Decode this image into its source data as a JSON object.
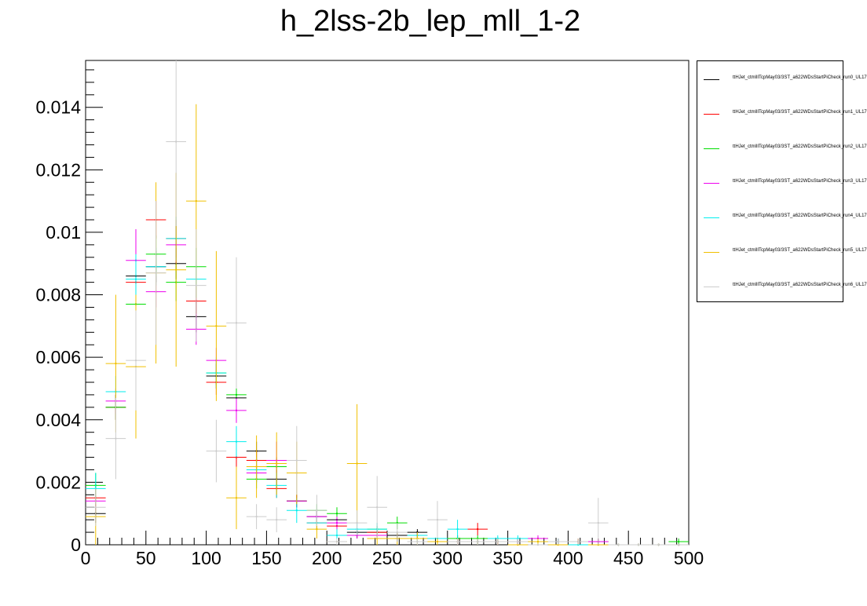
{
  "chart_data": {
    "type": "scatter",
    "title": "h_2lss-2b_lep_mll_1-2",
    "xlabel": "",
    "ylabel": "",
    "xlim": [
      0,
      500
    ],
    "ylim": [
      0,
      0.0155
    ],
    "x_ticks": [
      0,
      50,
      100,
      150,
      200,
      250,
      300,
      350,
      400,
      450,
      500
    ],
    "x_tick_labels": [
      "0",
      "50",
      "100",
      "150",
      "200",
      "250",
      "300",
      "350",
      "400",
      "450",
      "500"
    ],
    "y_ticks": [
      0,
      0.002,
      0.004,
      0.006,
      0.008,
      0.01,
      0.012,
      0.014
    ],
    "y_tick_labels": [
      "0",
      "0.002",
      "0.004",
      "0.006",
      "0.008",
      "0.01",
      "0.012",
      "0.014"
    ],
    "bin_width": 16.6667,
    "x": [
      8.33,
      25,
      41.67,
      58.33,
      75,
      91.67,
      108.33,
      125,
      141.67,
      158.33,
      175,
      191.67,
      208.33,
      225,
      241.67,
      258.33,
      275,
      291.67,
      308.33,
      325,
      341.67,
      358.33,
      375,
      391.67,
      408.33,
      425,
      441.67,
      458.33,
      475,
      491.67
    ],
    "legend_placement": "right",
    "series": [
      {
        "name": "ttHJet_ctmlIlTcpMay03/3ST_a622WDsStartPiCheck_run0_UL17",
        "color": "#000000",
        "values": [
          0.001,
          0.0044,
          0.0086,
          0.0089,
          0.009,
          0.0073,
          0.0054,
          0.0047,
          0.003,
          0.0021,
          0.0014,
          0.0009,
          0.0008,
          0.0004,
          0.0004,
          0.0003,
          0.0004,
          0.0002,
          0.0001,
          0.0001,
          0.0001,
          0.0001,
          0.0001,
          0.0001,
          0.0001,
          0.0001,
          0.0,
          0.0,
          0.0,
          0.0
        ],
        "errors": [
          0.0003,
          0.0004,
          0.0005,
          0.0005,
          0.0005,
          0.0005,
          0.0004,
          0.0004,
          0.0003,
          0.0003,
          0.0002,
          0.0002,
          0.0002,
          0.0001,
          0.0001,
          0.0001,
          0.0001,
          0.0001,
          0.0001,
          0.0001,
          0.0001,
          0.0001,
          0.0001,
          0.0001,
          0.0001,
          0.0001,
          0.0,
          0.0,
          0.0,
          0.0
        ]
      },
      {
        "name": "ttHJet_ctmlIlTcpMay03/3ST_a622WDsStartPiCheck_run1_UL17",
        "color": "#ff0000",
        "values": [
          0.0015,
          0.0044,
          0.0084,
          0.0104,
          0.0098,
          0.0078,
          0.0052,
          0.0028,
          0.0027,
          0.0018,
          0.0014,
          0.0007,
          0.0006,
          0.0003,
          0.0004,
          0.0002,
          0.0003,
          0.0002,
          0.0002,
          0.0005,
          0.0001,
          0.0001,
          0.0002,
          0.0001,
          0.0001,
          0.0001,
          0.0,
          0.0,
          0.0,
          0.0
        ],
        "errors": [
          0.0003,
          0.0004,
          0.0005,
          0.0006,
          0.0006,
          0.0005,
          0.0004,
          0.0003,
          0.0003,
          0.0003,
          0.0002,
          0.0002,
          0.0002,
          0.0001,
          0.0001,
          0.0001,
          0.0001,
          0.0001,
          0.0001,
          0.0002,
          0.0001,
          0.0001,
          0.0001,
          0.0001,
          0.0001,
          0.0001,
          0.0,
          0.0,
          0.0,
          0.0
        ]
      },
      {
        "name": "ttHJet_ctmlIlTcpMay03/3ST_a622WDsStartPiCheck_run2_UL17",
        "color": "#00dd00",
        "values": [
          0.0019,
          0.0044,
          0.0077,
          0.0093,
          0.0084,
          0.0089,
          0.0055,
          0.0048,
          0.0021,
          0.0025,
          0.0014,
          0.0011,
          0.001,
          0.0003,
          0.0005,
          0.0007,
          0.0002,
          0.0002,
          0.0002,
          0.0002,
          0.0001,
          0.0001,
          0.0002,
          0.0001,
          0.0001,
          0.0001,
          0.0,
          0.0,
          0.0,
          0.0001
        ],
        "errors": [
          0.0004,
          0.0004,
          0.0005,
          0.0006,
          0.0006,
          0.0006,
          0.0004,
          0.0004,
          0.0003,
          0.0003,
          0.0002,
          0.0002,
          0.0002,
          0.0001,
          0.0001,
          0.0002,
          0.0001,
          0.0001,
          0.0001,
          0.0001,
          0.0001,
          0.0001,
          0.0001,
          0.0001,
          0.0001,
          0.0001,
          0.0,
          0.0,
          0.0,
          0.0001
        ]
      },
      {
        "name": "ttHJet_ctmlIlTcpMay03/3ST_a622WDsStartPiCheck_run3_UL17",
        "color": "#ee00ee",
        "values": [
          0.0014,
          0.0046,
          0.0091,
          0.0081,
          0.0096,
          0.0069,
          0.0059,
          0.0043,
          0.0023,
          0.0027,
          0.0014,
          0.0009,
          0.0007,
          0.0003,
          0.0003,
          0.0002,
          0.0003,
          0.0001,
          0.0001,
          0.0001,
          0.0001,
          0.0001,
          0.0002,
          0.0001,
          0.0001,
          0.0001,
          0.0,
          0.0,
          0.0,
          0.0
        ],
        "errors": [
          0.0003,
          0.0004,
          0.001,
          0.0005,
          0.0006,
          0.0005,
          0.0004,
          0.0004,
          0.0003,
          0.0006,
          0.0002,
          0.0002,
          0.0002,
          0.0001,
          0.0001,
          0.0001,
          0.0001,
          0.0001,
          0.0001,
          0.0001,
          0.0001,
          0.0001,
          0.0001,
          0.0001,
          0.0001,
          0.0001,
          0.0,
          0.0,
          0.0,
          0.0
        ]
      },
      {
        "name": "ttHJet_ctmlIlTcpMay03/3ST_a622WDsStartPiCheck_run4_UL17",
        "color": "#00eeee",
        "values": [
          0.0018,
          0.0049,
          0.0085,
          0.0089,
          0.0098,
          0.0085,
          0.0055,
          0.0033,
          0.0024,
          0.0019,
          0.0011,
          0.0007,
          0.0003,
          0.0005,
          0.0005,
          0.0002,
          0.0003,
          0.0002,
          0.0005,
          0.0001,
          0.0002,
          0.0002,
          0.0001,
          0.0001,
          0.0,
          0.0,
          0.0,
          0.0,
          0.0,
          0.0
        ],
        "errors": [
          0.0005,
          0.0005,
          0.0008,
          0.0006,
          0.0007,
          0.0006,
          0.0005,
          0.0005,
          0.0004,
          0.0004,
          0.0004,
          0.0002,
          0.0002,
          0.0002,
          0.0002,
          0.0001,
          0.0001,
          0.0001,
          0.0003,
          0.0001,
          0.0001,
          0.0001,
          0.0001,
          0.0001,
          0.0,
          0.0,
          0.0,
          0.0,
          0.0,
          0.0
        ]
      },
      {
        "name": "ttHJet_ctmlIlTcpMay03/3ST_a622WDsStartPiCheck_run5_UL17",
        "color": "#f0c000",
        "values": [
          0.0009,
          0.0058,
          0.0057,
          0.0087,
          0.0088,
          0.011,
          0.007,
          0.0015,
          0.0025,
          0.0026,
          0.0023,
          0.0005,
          0.0001,
          0.0026,
          0.0002,
          0.0002,
          0.0002,
          0.0001,
          0.0001,
          0.0001,
          0.0001,
          0.0,
          0.0001,
          0.0,
          0.0001,
          0.0,
          0.0,
          0.0,
          0.0,
          0.0
        ],
        "errors": [
          0.0009,
          0.0022,
          0.0023,
          0.0029,
          0.0031,
          0.0031,
          0.0024,
          0.001,
          0.001,
          0.001,
          0.001,
          0.0003,
          0.0001,
          0.0019,
          0.0002,
          0.0002,
          0.0002,
          0.0001,
          0.0001,
          0.0001,
          0.0001,
          0.0,
          0.0001,
          0.0,
          0.0001,
          0.0,
          0.0,
          0.0,
          0.0,
          0.0
        ]
      },
      {
        "name": "ttHJet_ctmlIlTcpMay03/3ST_a622WDsStartPiCheck_run6_UL17",
        "color": "#cccccc",
        "values": [
          0.0012,
          0.0034,
          0.0059,
          0.0087,
          0.0129,
          0.0083,
          0.003,
          0.0071,
          0.0009,
          0.0008,
          0.0027,
          0.0011,
          0.0001,
          0.0007,
          0.0012,
          0.0004,
          0.0001,
          0.0008,
          0.0001,
          0.0001,
          0.0001,
          0.0001,
          0.0,
          0.0001,
          0.0001,
          0.0007,
          0.0,
          0.0,
          0.0,
          0.0
        ],
        "errors": [
          0.0006,
          0.0013,
          0.0016,
          0.0023,
          0.0027,
          0.0018,
          0.001,
          0.0021,
          0.0004,
          0.0004,
          0.0011,
          0.0005,
          0.0001,
          0.0004,
          0.001,
          0.0003,
          0.0001,
          0.0006,
          0.0001,
          0.0001,
          0.0001,
          0.0001,
          0.0,
          0.0001,
          0.0001,
          0.0008,
          0.0,
          0.0,
          0.0,
          0.0
        ]
      }
    ]
  }
}
